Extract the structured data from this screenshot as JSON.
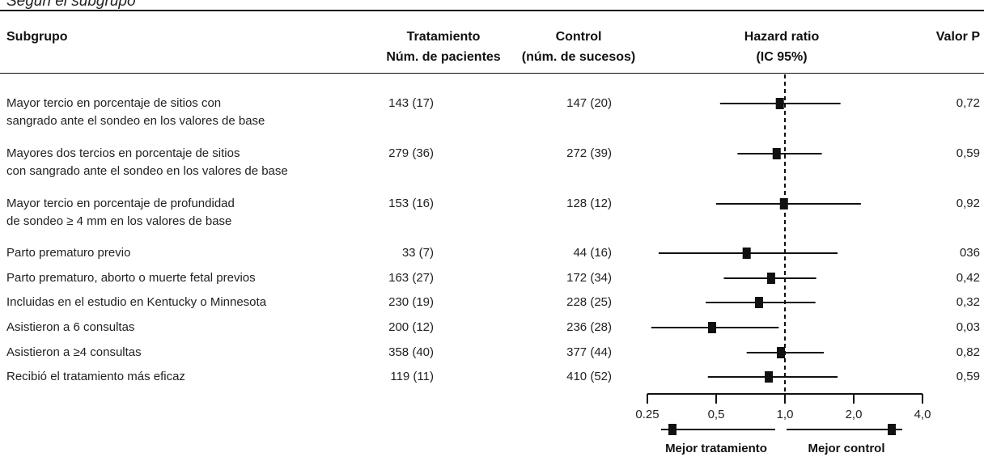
{
  "header": {
    "title": "Según el subgrupo",
    "columns": {
      "subgroup": "Subgrupo",
      "treatment_line1": "Tratamiento",
      "treatment_line2": "Núm. de pacientes",
      "control_line1": "Control",
      "control_line2": "(núm. de sucesos)",
      "hr_line1": "Hazard ratio",
      "hr_line2": "(IC 95%)",
      "pvalue": "Valor P"
    }
  },
  "rows": [
    {
      "label1": "Mayor tercio en porcentaje de sitios con",
      "label2": "sangrado ante el sondeo en los valores de base",
      "treatment": "143 (17)",
      "control": "147 (20)",
      "p": "0,72"
    },
    {
      "label1": "Mayores dos tercios en porcentaje de sitios",
      "label2": "con sangrado ante el sondeo en los valores de base",
      "treatment": "279 (36)",
      "control": "272 (39)",
      "p": "0,59"
    },
    {
      "label1": "Mayor tercio en porcentaje de profundidad",
      "label2": "de sondeo ≥ 4 mm en los valores de base",
      "treatment": "153 (16)",
      "control": "128 (12)",
      "p": "0,92"
    },
    {
      "label1": "Parto prematuro previo",
      "label2": "",
      "treatment": "33 (7)",
      "control": "44 (16)",
      "p": "036"
    },
    {
      "label1": "Parto prematuro, aborto o muerte fetal previos",
      "label2": "",
      "treatment": "163 (27)",
      "control": "172 (34)",
      "p": "0,42"
    },
    {
      "label1": "Incluidas en el estudio en Kentucky o Minnesota",
      "label2": "",
      "treatment": "230 (19)",
      "control": "228 (25)",
      "p": "0,32"
    },
    {
      "label1": "Asistieron a 6 consultas",
      "label2": "",
      "treatment": "200 (12)",
      "control": "236 (28)",
      "p": "0,03"
    },
    {
      "label1": "Asistieron a ≥4 consultas",
      "label2": "",
      "treatment": "358 (40)",
      "control": "377 (44)",
      "p": "0,82"
    },
    {
      "label1": "Recibió el tratamiento más eficaz",
      "label2": "",
      "treatment": "119 (11)",
      "control": "410 (52)",
      "p": "0,59"
    }
  ],
  "chart_data": {
    "type": "forest",
    "scale": "log",
    "xlim": [
      0.25,
      4.0
    ],
    "ticks": [
      0.25,
      0.5,
      1.0,
      2.0,
      4.0
    ],
    "tick_labels": [
      "0.25",
      "0,5",
      "1,0",
      "2,0",
      "4,0"
    ],
    "reference_line": 1.0,
    "series": [
      {
        "values": [
          {
            "hr": 0.95,
            "lo": 0.52,
            "hi": 1.75
          },
          {
            "hr": 0.92,
            "lo": 0.62,
            "hi": 1.45
          },
          {
            "hr": 0.99,
            "lo": 0.5,
            "hi": 2.15
          },
          {
            "hr": 0.68,
            "lo": 0.28,
            "hi": 1.7
          },
          {
            "hr": 0.87,
            "lo": 0.54,
            "hi": 1.37
          },
          {
            "hr": 0.77,
            "lo": 0.45,
            "hi": 1.36
          },
          {
            "hr": 0.48,
            "lo": 0.26,
            "hi": 0.94
          },
          {
            "hr": 0.96,
            "lo": 0.68,
            "hi": 1.48
          },
          {
            "hr": 0.85,
            "lo": 0.46,
            "hi": 1.7
          }
        ]
      }
    ],
    "legend": {
      "left_label": "Mejor tratamiento",
      "right_label": "Mejor control"
    }
  }
}
